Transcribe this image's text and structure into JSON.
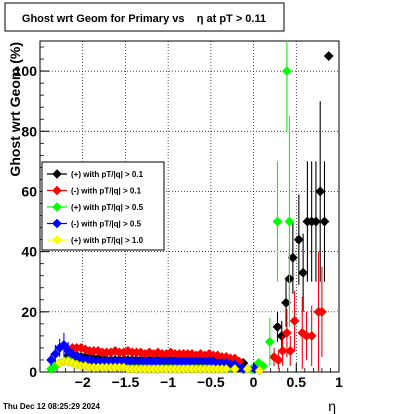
{
  "footer_text": "Thu Dec 12 08:25:29 2024",
  "chart_data": {
    "type": "scatter",
    "title": "Ghost wrt Geom for Primary vs    η at pT > 0.11",
    "xlabel": "η",
    "ylabel": "Ghost wrt Geom (%)",
    "xlim": [
      -2.5,
      1.0
    ],
    "ylim": [
      0,
      110
    ],
    "x_ticks": [
      -2,
      -1.5,
      -1,
      -0.5,
      0,
      0.5,
      1
    ],
    "x_tick_labels": [
      "−2",
      "−1.5",
      "−1",
      "−0.5",
      "0",
      "0.5",
      "1"
    ],
    "y_ticks": [
      0,
      20,
      40,
      60,
      80,
      100
    ],
    "y_tick_labels": [
      "0",
      "20",
      "40",
      "60",
      "80",
      "100"
    ],
    "grid": true,
    "legend_position": "left-middle",
    "series": [
      {
        "name": "(+) with pT/|q| > 0.1",
        "color": "#000000",
        "marker": "diamond",
        "points": [
          [
            -2.17,
            5.5
          ],
          [
            -2.12,
            6.0
          ],
          [
            -2.07,
            5.5
          ],
          [
            -2.02,
            5.0
          ],
          [
            -1.97,
            5.0
          ],
          [
            -1.92,
            5.0
          ],
          [
            -1.87,
            4.5
          ],
          [
            -1.82,
            4.5
          ],
          [
            -1.77,
            4.5
          ],
          [
            -1.72,
            4.0
          ],
          [
            -1.67,
            4.0
          ],
          [
            -1.62,
            4.0
          ],
          [
            -1.57,
            4.0
          ],
          [
            -1.52,
            4.0
          ],
          [
            -1.47,
            4.0
          ],
          [
            -1.42,
            4.0
          ],
          [
            -1.37,
            4.0
          ],
          [
            -1.32,
            4.0
          ],
          [
            -1.27,
            4.0
          ],
          [
            -1.22,
            4.0
          ],
          [
            -1.17,
            4.0
          ],
          [
            -1.12,
            4.0
          ],
          [
            -1.07,
            4.0
          ],
          [
            -1.02,
            4.0
          ],
          [
            -0.97,
            4.0
          ],
          [
            -0.92,
            4.0
          ],
          [
            -0.87,
            4.0
          ],
          [
            -0.82,
            4.0
          ],
          [
            -0.77,
            4.0
          ],
          [
            -0.72,
            4.0
          ],
          [
            -0.67,
            4.0
          ],
          [
            -0.62,
            4.0
          ],
          [
            -0.57,
            4.0
          ],
          [
            -0.52,
            4.0
          ],
          [
            -0.47,
            4.0
          ],
          [
            -0.42,
            4.0
          ],
          [
            -0.37,
            4.0
          ],
          [
            -0.32,
            4.0
          ],
          [
            -0.27,
            4.0
          ],
          [
            -0.22,
            4.0
          ],
          [
            -0.12,
            3.0
          ],
          [
            0.03,
            2.0
          ],
          [
            0.28,
            15.0
          ],
          [
            0.33,
            12.0
          ],
          [
            0.38,
            23.0
          ],
          [
            0.42,
            31.0
          ],
          [
            0.46,
            38.0
          ],
          [
            0.53,
            44.0
          ],
          [
            0.58,
            33.0
          ],
          [
            0.63,
            50.0
          ],
          [
            0.68,
            50.0
          ],
          [
            0.73,
            50.0
          ],
          [
            0.78,
            60.0
          ],
          [
            0.83,
            50.0
          ],
          [
            0.88,
            105.0
          ]
        ],
        "errors": [
          [
            -2.17,
            1.5
          ],
          [
            -2.12,
            1.5
          ],
          [
            -2.07,
            1.5
          ],
          [
            -2.02,
            1.0
          ],
          [
            0.28,
            5.0
          ],
          [
            0.33,
            5.0
          ],
          [
            0.38,
            8.0
          ],
          [
            0.42,
            10.0
          ],
          [
            0.46,
            12.0
          ],
          [
            0.53,
            15.0
          ],
          [
            0.58,
            13.0
          ],
          [
            0.63,
            20.0
          ],
          [
            0.68,
            20.0
          ],
          [
            0.73,
            20.0
          ],
          [
            0.78,
            30.0
          ],
          [
            0.83,
            20.0
          ]
        ]
      },
      {
        "name": "(-) with pT/|q| > 0.1",
        "color": "#ff0000",
        "marker": "diamond",
        "points": [
          [
            -2.17,
            7.5
          ],
          [
            -2.12,
            8.0
          ],
          [
            -2.07,
            8.0
          ],
          [
            -2.02,
            8.0
          ],
          [
            -1.97,
            7.5
          ],
          [
            -1.92,
            7.0
          ],
          [
            -1.87,
            7.0
          ],
          [
            -1.82,
            7.0
          ],
          [
            -1.77,
            6.5
          ],
          [
            -1.72,
            6.5
          ],
          [
            -1.67,
            6.5
          ],
          [
            -1.62,
            7.0
          ],
          [
            -1.57,
            6.5
          ],
          [
            -1.52,
            6.5
          ],
          [
            -1.47,
            7.0
          ],
          [
            -1.42,
            6.5
          ],
          [
            -1.37,
            6.5
          ],
          [
            -1.32,
            6.5
          ],
          [
            -1.27,
            6.0
          ],
          [
            -1.22,
            6.5
          ],
          [
            -1.17,
            6.0
          ],
          [
            -1.12,
            6.5
          ],
          [
            -1.07,
            6.0
          ],
          [
            -1.02,
            6.0
          ],
          [
            -0.97,
            6.5
          ],
          [
            -0.92,
            6.0
          ],
          [
            -0.87,
            6.0
          ],
          [
            -0.82,
            6.0
          ],
          [
            -0.77,
            6.0
          ],
          [
            -0.72,
            6.0
          ],
          [
            -0.67,
            5.5
          ],
          [
            -0.62,
            6.0
          ],
          [
            -0.57,
            5.5
          ],
          [
            -0.52,
            6.0
          ],
          [
            -0.47,
            5.5
          ],
          [
            -0.42,
            5.5
          ],
          [
            -0.37,
            5.0
          ],
          [
            -0.32,
            5.0
          ],
          [
            -0.27,
            4.5
          ],
          [
            -0.22,
            4.5
          ],
          [
            -0.17,
            3.5
          ],
          [
            0.07,
            1.0
          ],
          [
            0.24,
            5.0
          ],
          [
            0.29,
            4.0
          ],
          [
            0.34,
            7.0
          ],
          [
            0.39,
            13.0
          ],
          [
            0.43,
            7.0
          ],
          [
            0.48,
            17.0
          ],
          [
            0.57,
            13.0
          ],
          [
            0.62,
            12.0
          ],
          [
            0.68,
            12.0
          ],
          [
            0.76,
            20.0
          ],
          [
            0.8,
            20.0
          ]
        ],
        "errors": [
          [
            0.24,
            3.0
          ],
          [
            0.29,
            3.0
          ],
          [
            0.34,
            5.0
          ],
          [
            0.39,
            8.0
          ],
          [
            0.43,
            5.0
          ],
          [
            0.48,
            10.0
          ],
          [
            0.57,
            12.0
          ],
          [
            0.62,
            8.0
          ],
          [
            0.68,
            10.0
          ],
          [
            0.76,
            20.0
          ],
          [
            0.8,
            15.0
          ]
        ]
      },
      {
        "name": "(+) with pT/|q| > 0.5",
        "color": "#00ff00",
        "marker": "diamond",
        "points": [
          [
            -2.37,
            1.0
          ],
          [
            -2.32,
            2.0
          ],
          [
            -2.27,
            3.0
          ],
          [
            -2.22,
            3.5
          ],
          [
            -2.17,
            4.0
          ],
          [
            -2.12,
            4.0
          ],
          [
            -2.07,
            4.0
          ],
          [
            -2.02,
            3.5
          ],
          [
            -1.97,
            3.0
          ],
          [
            -1.92,
            3.0
          ],
          [
            -1.87,
            3.0
          ],
          [
            -1.82,
            3.0
          ],
          [
            -1.77,
            3.0
          ],
          [
            -1.72,
            3.0
          ],
          [
            -1.67,
            3.0
          ],
          [
            -1.62,
            3.0
          ],
          [
            -1.57,
            3.0
          ],
          [
            -1.52,
            3.0
          ],
          [
            -1.47,
            3.0
          ],
          [
            -1.42,
            3.0
          ],
          [
            -1.37,
            3.0
          ],
          [
            -1.32,
            3.0
          ],
          [
            -1.27,
            3.0
          ],
          [
            -1.22,
            3.0
          ],
          [
            -1.17,
            3.0
          ],
          [
            -1.12,
            3.0
          ],
          [
            -1.07,
            3.0
          ],
          [
            -1.02,
            3.0
          ],
          [
            -0.97,
            3.0
          ],
          [
            -0.92,
            3.0
          ],
          [
            -0.87,
            3.0
          ],
          [
            -0.82,
            3.0
          ],
          [
            -0.77,
            3.0
          ],
          [
            -0.72,
            3.0
          ],
          [
            -0.67,
            2.5
          ],
          [
            -0.62,
            2.5
          ],
          [
            -0.57,
            2.5
          ],
          [
            -0.52,
            2.5
          ],
          [
            -0.47,
            2.5
          ],
          [
            -0.42,
            2.5
          ],
          [
            -0.37,
            2.0
          ],
          [
            -0.32,
            2.0
          ],
          [
            -0.27,
            1.5
          ],
          [
            -0.02,
            1.0
          ],
          [
            0.06,
            3.0
          ],
          [
            0.11,
            2.0
          ],
          [
            0.19,
            10.0
          ],
          [
            0.28,
            50.0
          ],
          [
            0.39,
            100.0
          ],
          [
            0.42,
            50.0
          ]
        ],
        "errors": [
          [
            0.19,
            8.0
          ],
          [
            0.28,
            20.0
          ],
          [
            0.39,
            20.0
          ],
          [
            0.42,
            35.0
          ]
        ]
      },
      {
        "name": "(-) with pT/|q| > 0.5",
        "color": "#0000ff",
        "marker": "diamond",
        "points": [
          [
            -2.37,
            4.0
          ],
          [
            -2.32,
            6.0
          ],
          [
            -2.27,
            8.0
          ],
          [
            -2.22,
            9.0
          ],
          [
            -2.17,
            7.0
          ],
          [
            -2.12,
            6.0
          ],
          [
            -2.07,
            5.0
          ],
          [
            -2.02,
            4.5
          ],
          [
            -1.97,
            4.0
          ],
          [
            -1.92,
            4.0
          ],
          [
            -1.87,
            3.5
          ],
          [
            -1.82,
            3.5
          ],
          [
            -1.77,
            3.5
          ],
          [
            -1.72,
            3.5
          ],
          [
            -1.67,
            3.5
          ],
          [
            -1.62,
            3.5
          ],
          [
            -1.57,
            3.5
          ],
          [
            -1.52,
            3.5
          ],
          [
            -1.47,
            3.5
          ],
          [
            -1.42,
            3.5
          ],
          [
            -1.37,
            3.5
          ],
          [
            -1.32,
            3.5
          ],
          [
            -1.27,
            3.5
          ],
          [
            -1.22,
            3.5
          ],
          [
            -1.17,
            3.5
          ],
          [
            -1.12,
            3.5
          ],
          [
            -1.07,
            3.5
          ],
          [
            -1.02,
            3.5
          ],
          [
            -0.97,
            3.5
          ],
          [
            -0.92,
            3.5
          ],
          [
            -0.87,
            3.5
          ],
          [
            -0.82,
            3.5
          ],
          [
            -0.77,
            3.5
          ],
          [
            -0.72,
            3.5
          ],
          [
            -0.67,
            3.5
          ],
          [
            -0.62,
            3.5
          ],
          [
            -0.57,
            3.5
          ],
          [
            -0.52,
            3.5
          ],
          [
            -0.47,
            3.5
          ],
          [
            -0.42,
            3.0
          ],
          [
            -0.37,
            3.0
          ],
          [
            -0.32,
            3.0
          ],
          [
            -0.27,
            2.5
          ],
          [
            -0.22,
            2.5
          ],
          [
            -0.17,
            1.5
          ],
          [
            -0.12,
            1.0
          ],
          [
            0.01,
            1.0
          ]
        ],
        "errors": [
          [
            -2.37,
            2.0
          ],
          [
            -2.32,
            3.0
          ],
          [
            -2.27,
            3.0
          ],
          [
            -2.22,
            4.0
          ],
          [
            -2.17,
            3.0
          ]
        ]
      },
      {
        "name": "(+) with pT/|q| > 1.0",
        "color": "#ffff00",
        "marker": "diamond",
        "points": [
          [
            -2.27,
            3.0
          ],
          [
            -2.22,
            3.5
          ],
          [
            -2.17,
            3.5
          ],
          [
            -2.12,
            3.0
          ],
          [
            -2.07,
            2.5
          ],
          [
            -2.02,
            2.0
          ],
          [
            -1.97,
            2.0
          ],
          [
            -1.92,
            1.5
          ],
          [
            -1.87,
            1.5
          ],
          [
            -1.82,
            1.5
          ],
          [
            -1.77,
            1.5
          ],
          [
            -1.72,
            1.5
          ],
          [
            -1.67,
            1.5
          ],
          [
            -1.62,
            1.5
          ],
          [
            -1.57,
            1.5
          ],
          [
            -1.52,
            1.5
          ],
          [
            -1.47,
            1.0
          ],
          [
            -1.42,
            1.0
          ],
          [
            -1.37,
            1.0
          ],
          [
            -1.32,
            1.0
          ],
          [
            -1.27,
            1.0
          ],
          [
            -1.22,
            1.0
          ],
          [
            -1.17,
            1.0
          ],
          [
            -1.12,
            1.0
          ],
          [
            -1.07,
            1.0
          ],
          [
            -1.02,
            1.0
          ],
          [
            -0.97,
            1.0
          ],
          [
            -0.92,
            1.0
          ],
          [
            -0.87,
            1.0
          ],
          [
            -0.82,
            1.0
          ],
          [
            -0.77,
            1.0
          ],
          [
            -0.72,
            1.0
          ],
          [
            -0.67,
            1.0
          ],
          [
            -0.62,
            1.0
          ],
          [
            -0.57,
            1.0
          ],
          [
            -0.52,
            1.0
          ],
          [
            -0.47,
            1.0
          ],
          [
            -0.42,
            1.0
          ],
          [
            -0.37,
            1.0
          ],
          [
            -0.32,
            1.0
          ],
          [
            -0.22,
            1.0
          ],
          [
            -0.07,
            1.0
          ],
          [
            0.07,
            0.5
          ]
        ],
        "errors": []
      }
    ]
  }
}
